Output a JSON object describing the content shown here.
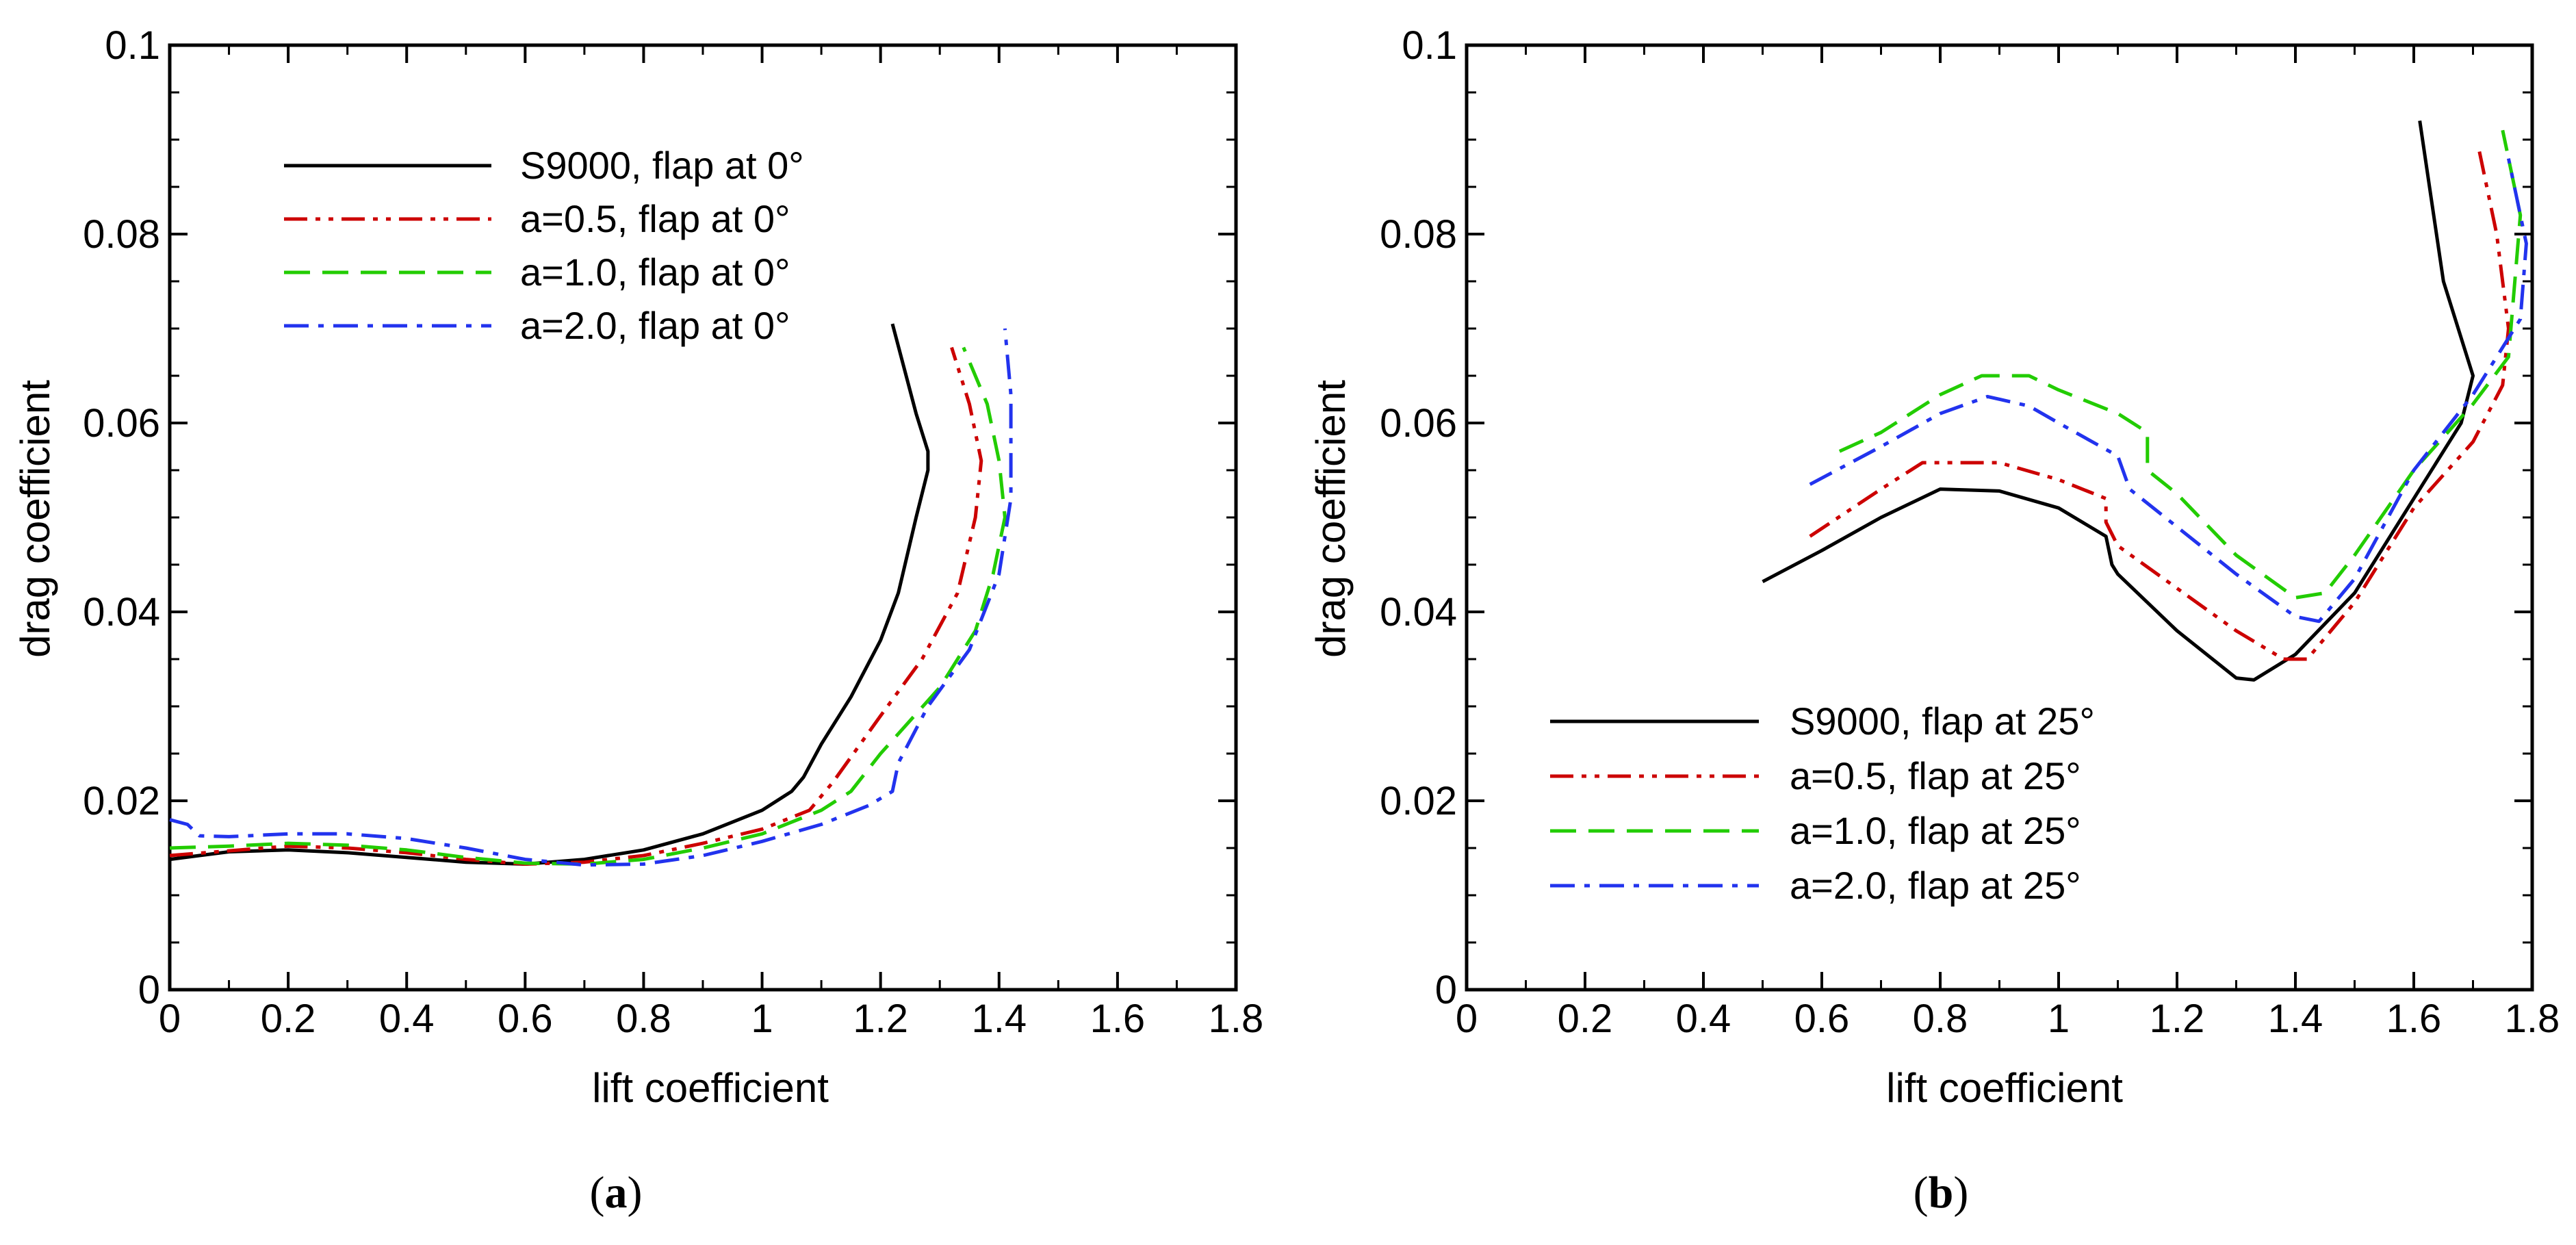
{
  "chart_data": [
    {
      "type": "line",
      "panel_label": {
        "open": "(",
        "letter": "a",
        "close": ")"
      },
      "xlabel": "lift coefficient",
      "ylabel": "drag coefficient",
      "xlim": [
        0,
        1.8
      ],
      "ylim": [
        0,
        0.1
      ],
      "xticks": [
        "0",
        "0.2",
        "0.4",
        "0.6",
        "0.8",
        "1",
        "1.2",
        "1.4",
        "1.6",
        "1.8"
      ],
      "yticks": [
        "0",
        "0.02",
        "0.04",
        "0.06",
        "0.08",
        "0.1"
      ],
      "legend_position": "top-left",
      "series": [
        {
          "name": "S9000, flap at 0°",
          "color": "#000000",
          "style": "solid",
          "x": [
            0.0,
            0.05,
            0.1,
            0.2,
            0.3,
            0.4,
            0.5,
            0.6,
            0.7,
            0.8,
            0.9,
            1.0,
            1.05,
            1.07,
            1.1,
            1.15,
            1.2,
            1.23,
            1.26,
            1.28,
            1.28,
            1.26,
            1.22
          ],
          "y": [
            0.0138,
            0.0142,
            0.0146,
            0.0148,
            0.0145,
            0.014,
            0.0135,
            0.0133,
            0.0138,
            0.0148,
            0.0165,
            0.019,
            0.021,
            0.0225,
            0.026,
            0.031,
            0.037,
            0.042,
            0.05,
            0.055,
            0.057,
            0.061,
            0.0705
          ]
        },
        {
          "name": "a=0.5, flap at 0°",
          "color": "#cc0000",
          "style": "dashdotdot",
          "x": [
            0.0,
            0.1,
            0.2,
            0.3,
            0.4,
            0.5,
            0.6,
            0.7,
            0.8,
            0.9,
            1.0,
            1.08,
            1.12,
            1.2,
            1.27,
            1.33,
            1.36,
            1.37,
            1.35,
            1.32
          ],
          "y": [
            0.0142,
            0.0147,
            0.0152,
            0.015,
            0.0145,
            0.0138,
            0.0133,
            0.0135,
            0.0142,
            0.0155,
            0.017,
            0.019,
            0.022,
            0.029,
            0.035,
            0.042,
            0.05,
            0.056,
            0.062,
            0.068
          ]
        },
        {
          "name": "a=1.0, flap at 0°",
          "color": "#22cc00",
          "style": "dashed",
          "x": [
            0.0,
            0.1,
            0.2,
            0.3,
            0.4,
            0.5,
            0.6,
            0.7,
            0.8,
            0.9,
            1.0,
            1.1,
            1.15,
            1.2,
            1.3,
            1.36,
            1.39,
            1.41,
            1.4,
            1.38,
            1.34
          ],
          "y": [
            0.015,
            0.0152,
            0.0155,
            0.0153,
            0.0148,
            0.014,
            0.0134,
            0.0133,
            0.0138,
            0.015,
            0.0165,
            0.019,
            0.021,
            0.025,
            0.032,
            0.038,
            0.044,
            0.05,
            0.056,
            0.062,
            0.068
          ]
        },
        {
          "name": "a=2.0, flap at 0°",
          "color": "#2233ee",
          "style": "dashdot",
          "x": [
            0.0,
            0.03,
            0.05,
            0.1,
            0.2,
            0.3,
            0.4,
            0.5,
            0.6,
            0.7,
            0.8,
            0.9,
            1.0,
            1.1,
            1.18,
            1.22,
            1.23,
            1.28,
            1.35,
            1.4,
            1.42,
            1.42,
            1.41
          ],
          "y": [
            0.018,
            0.0175,
            0.0163,
            0.0162,
            0.0165,
            0.0165,
            0.016,
            0.015,
            0.0138,
            0.0132,
            0.0133,
            0.0142,
            0.0157,
            0.0175,
            0.0195,
            0.021,
            0.024,
            0.03,
            0.036,
            0.044,
            0.052,
            0.063,
            0.07
          ]
        }
      ]
    },
    {
      "type": "line",
      "panel_label": {
        "open": "(",
        "letter": "b",
        "close": ")"
      },
      "xlabel": "lift coefficient",
      "ylabel": "drag coefficient",
      "xlim": [
        0,
        1.8
      ],
      "ylim": [
        0,
        0.1
      ],
      "xticks": [
        "0",
        "0.2",
        "0.4",
        "0.6",
        "0.8",
        "1",
        "1.2",
        "1.4",
        "1.6",
        "1.8"
      ],
      "yticks": [
        "0",
        "0.02",
        "0.04",
        "0.06",
        "0.08",
        "0.1"
      ],
      "legend_position": "bottom-left",
      "series": [
        {
          "name": "S9000, flap at 25°",
          "color": "#000000",
          "style": "solid",
          "x": [
            0.5,
            0.6,
            0.7,
            0.8,
            0.9,
            1.0,
            1.08,
            1.09,
            1.1,
            1.2,
            1.3,
            1.33,
            1.4,
            1.5,
            1.6,
            1.68,
            1.7,
            1.65,
            1.61
          ],
          "y": [
            0.0432,
            0.0465,
            0.05,
            0.053,
            0.0528,
            0.051,
            0.048,
            0.045,
            0.044,
            0.038,
            0.033,
            0.0328,
            0.0355,
            0.042,
            0.052,
            0.06,
            0.065,
            0.075,
            0.092
          ]
        },
        {
          "name": "a=0.5, flap at 25°",
          "color": "#cc0000",
          "style": "dashdotdot",
          "x": [
            0.58,
            0.7,
            0.77,
            0.9,
            1.0,
            1.08,
            1.08,
            1.1,
            1.2,
            1.3,
            1.38,
            1.42,
            1.5,
            1.6,
            1.7,
            1.75,
            1.76,
            1.74,
            1.71
          ],
          "y": [
            0.048,
            0.053,
            0.0558,
            0.0558,
            0.054,
            0.052,
            0.0495,
            0.047,
            0.0425,
            0.038,
            0.035,
            0.035,
            0.041,
            0.051,
            0.058,
            0.064,
            0.07,
            0.08,
            0.089
          ]
        },
        {
          "name": "a=1.0, flap at 25°",
          "color": "#22cc00",
          "style": "dashed",
          "x": [
            0.63,
            0.7,
            0.8,
            0.87,
            0.95,
            1.0,
            1.1,
            1.15,
            1.15,
            1.2,
            1.3,
            1.4,
            1.45,
            1.5,
            1.6,
            1.7,
            1.76,
            1.78,
            1.75
          ],
          "y": [
            0.057,
            0.059,
            0.063,
            0.065,
            0.065,
            0.0635,
            0.061,
            0.059,
            0.055,
            0.0525,
            0.046,
            0.0415,
            0.042,
            0.046,
            0.055,
            0.062,
            0.067,
            0.082,
            0.091
          ]
        },
        {
          "name": "a=2.0, flap at 25°",
          "color": "#2233ee",
          "style": "dashdot",
          "x": [
            0.58,
            0.7,
            0.8,
            0.88,
            0.95,
            1.0,
            1.1,
            1.12,
            1.2,
            1.3,
            1.4,
            1.44,
            1.5,
            1.6,
            1.7,
            1.78,
            1.79,
            1.76
          ],
          "y": [
            0.0535,
            0.0575,
            0.061,
            0.0628,
            0.0618,
            0.06,
            0.0565,
            0.053,
            0.049,
            0.044,
            0.0395,
            0.039,
            0.0435,
            0.055,
            0.063,
            0.071,
            0.079,
            0.088
          ]
        }
      ]
    }
  ]
}
